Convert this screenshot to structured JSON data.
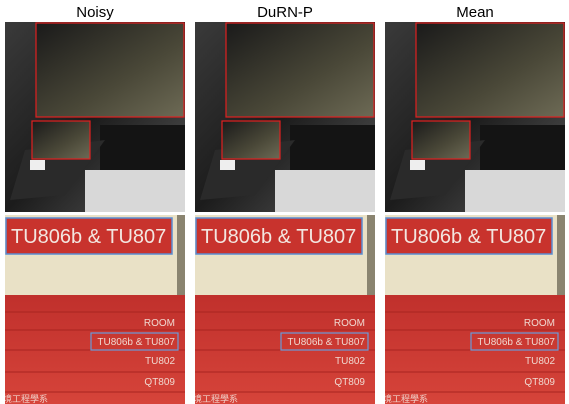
{
  "columns": [
    "Noisy",
    "DuRN-P",
    "Mean"
  ],
  "sign_texts": {
    "zoom_label": "TU806b & TU807",
    "room": "ROOM",
    "entry1": "TU806b & TU807",
    "entry2": "TU802",
    "entry3": "QT809",
    "department": "境工程學系"
  }
}
